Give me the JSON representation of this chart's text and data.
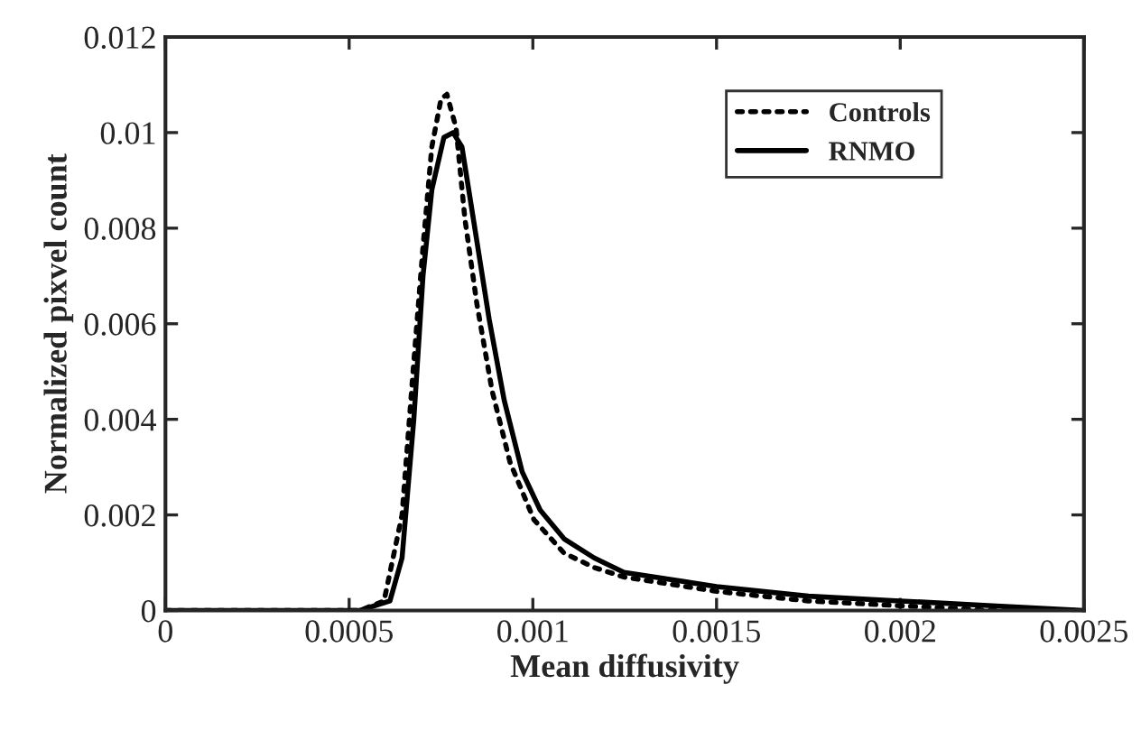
{
  "chart_data": {
    "type": "line",
    "xlabel": "Mean diffusivity",
    "ylabel": "Normalized pixvel count",
    "xlim": [
      0,
      0.0025
    ],
    "xticks": [
      0,
      0.0005,
      0.001,
      0.0015,
      0.002,
      0.0025
    ],
    "ylim": [
      0,
      0.012
    ],
    "yticks": [
      0,
      0.002,
      0.004,
      0.006,
      0.008,
      0.01,
      0.012
    ],
    "grid": false,
    "legend": "top right",
    "marker": "none",
    "series": [
      {
        "name": "Controls",
        "color": "#000000",
        "line_style": "dotted",
        "x": [
          0,
          0.0003,
          0.0004,
          0.000529,
          0.000595,
          0.000644,
          0.000676,
          0.000701,
          0.000725,
          0.00075,
          0.000766,
          0.000791,
          0.000815,
          0.000848,
          0.000889,
          0.000938,
          0.001003,
          0.001085,
          0.001167,
          0.001248,
          0.0015,
          0.00175,
          0.002,
          0.00225,
          0.0025
        ],
        "values": [
          0,
          0,
          0,
          0,
          0.0002,
          0.002,
          0.0052,
          0.0076,
          0.0097,
          0.0107,
          0.0108,
          0.0101,
          0.0082,
          0.0064,
          0.0046,
          0.0031,
          0.0019,
          0.0012,
          0.0009,
          0.0007,
          0.0004,
          0.0002,
          0.0001,
          0,
          0
        ]
      },
      {
        "name": "RNMO",
        "color": "#000000",
        "line_style": "solid",
        "x": [
          0,
          0.0003,
          0.0004,
          0.000529,
          0.000611,
          0.000644,
          0.000676,
          0.000701,
          0.000725,
          0.000758,
          0.000783,
          0.000807,
          0.00084,
          0.000881,
          0.000922,
          0.000971,
          0.00102,
          0.001085,
          0.001167,
          0.001248,
          0.0015,
          0.00175,
          0.002,
          0.00225,
          0.0025
        ],
        "values": [
          0,
          0,
          0,
          0,
          0.0002,
          0.0011,
          0.004,
          0.007,
          0.0088,
          0.0099,
          0.01,
          0.0097,
          0.0081,
          0.0061,
          0.0044,
          0.0029,
          0.0021,
          0.0015,
          0.0011,
          0.0008,
          0.0005,
          0.0003,
          0.0002,
          0.0001,
          0
        ]
      }
    ]
  }
}
